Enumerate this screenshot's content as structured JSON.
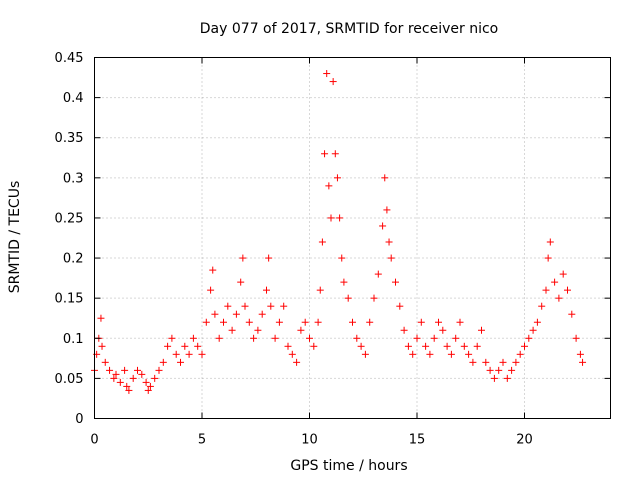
{
  "chart_data": {
    "type": "scatter",
    "title": "Day 077 of 2017, SRMTID for receiver nico",
    "xlabel": "GPS time / hours",
    "ylabel": "SRMTID / TECUs",
    "xlim": [
      0,
      24
    ],
    "ylim": [
      0,
      0.45
    ],
    "xticks": [
      0,
      5,
      10,
      15,
      20
    ],
    "xtick_labels": [
      "0",
      "5",
      "10",
      "15",
      "20"
    ],
    "yticks": [
      0,
      0.05,
      0.1,
      0.15,
      0.2,
      0.25,
      0.3,
      0.35,
      0.4,
      0.45
    ],
    "ytick_labels": [
      "0",
      "0.05",
      "0.1",
      "0.15",
      "0.2",
      "0.25",
      "0.3",
      "0.35",
      "0.4",
      "0.45"
    ],
    "grid": true,
    "marker": "+",
    "color": "#ff0000",
    "series": [
      {
        "name": "SRMTID",
        "x": [
          0.0,
          0.1,
          0.2,
          0.3,
          0.35,
          0.5,
          0.7,
          0.9,
          1.0,
          1.2,
          1.4,
          1.5,
          1.6,
          1.8,
          2.0,
          2.2,
          2.4,
          2.5,
          2.6,
          2.8,
          3.0,
          3.2,
          3.4,
          3.6,
          3.8,
          4.0,
          4.2,
          4.4,
          4.6,
          4.8,
          5.0,
          5.2,
          5.4,
          5.5,
          5.6,
          5.8,
          6.0,
          6.2,
          6.4,
          6.6,
          6.8,
          6.9,
          7.0,
          7.2,
          7.4,
          7.6,
          7.8,
          8.0,
          8.1,
          8.2,
          8.4,
          8.6,
          8.8,
          9.0,
          9.2,
          9.4,
          9.6,
          9.8,
          10.0,
          10.2,
          10.4,
          10.5,
          10.6,
          10.7,
          10.8,
          10.9,
          11.0,
          11.1,
          11.2,
          11.3,
          11.4,
          11.5,
          11.6,
          11.8,
          12.0,
          12.2,
          12.4,
          12.6,
          12.8,
          13.0,
          13.2,
          13.4,
          13.5,
          13.6,
          13.7,
          13.8,
          14.0,
          14.2,
          14.4,
          14.6,
          14.8,
          15.0,
          15.2,
          15.4,
          15.6,
          15.8,
          16.0,
          16.2,
          16.4,
          16.6,
          16.8,
          17.0,
          17.2,
          17.4,
          17.6,
          17.8,
          18.0,
          18.2,
          18.4,
          18.6,
          18.8,
          19.0,
          19.2,
          19.4,
          19.6,
          19.8,
          20.0,
          20.2,
          20.4,
          20.6,
          20.8,
          21.0,
          21.1,
          21.2,
          21.4,
          21.6,
          21.8,
          22.0,
          22.2,
          22.4,
          22.6,
          22.7
        ],
        "y": [
          0.06,
          0.08,
          0.1,
          0.125,
          0.09,
          0.07,
          0.06,
          0.05,
          0.055,
          0.045,
          0.06,
          0.04,
          0.035,
          0.05,
          0.06,
          0.055,
          0.045,
          0.035,
          0.04,
          0.05,
          0.06,
          0.07,
          0.09,
          0.1,
          0.08,
          0.07,
          0.09,
          0.08,
          0.1,
          0.09,
          0.08,
          0.12,
          0.16,
          0.185,
          0.13,
          0.1,
          0.12,
          0.14,
          0.11,
          0.13,
          0.17,
          0.2,
          0.14,
          0.12,
          0.1,
          0.11,
          0.13,
          0.16,
          0.2,
          0.14,
          0.1,
          0.12,
          0.14,
          0.09,
          0.08,
          0.07,
          0.11,
          0.12,
          0.1,
          0.09,
          0.12,
          0.16,
          0.22,
          0.33,
          0.43,
          0.29,
          0.25,
          0.42,
          0.33,
          0.3,
          0.25,
          0.2,
          0.17,
          0.15,
          0.12,
          0.1,
          0.09,
          0.08,
          0.12,
          0.15,
          0.18,
          0.24,
          0.3,
          0.26,
          0.22,
          0.2,
          0.17,
          0.14,
          0.11,
          0.09,
          0.08,
          0.1,
          0.12,
          0.09,
          0.08,
          0.1,
          0.12,
          0.11,
          0.09,
          0.08,
          0.1,
          0.12,
          0.09,
          0.08,
          0.07,
          0.09,
          0.11,
          0.07,
          0.06,
          0.05,
          0.06,
          0.07,
          0.05,
          0.06,
          0.07,
          0.08,
          0.09,
          0.1,
          0.11,
          0.12,
          0.14,
          0.16,
          0.2,
          0.22,
          0.17,
          0.15,
          0.18,
          0.16,
          0.13,
          0.1,
          0.08,
          0.07
        ]
      }
    ]
  }
}
